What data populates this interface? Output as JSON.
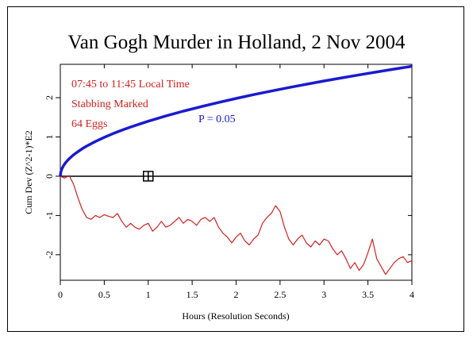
{
  "chart_data": {
    "type": "line",
    "title": "Van Gogh Murder in Holland, 2 Nov 2004",
    "xlabel": "Hours (Resolution Seconds)",
    "ylabel": "Cum Dev (Z^2-1)*E2",
    "xlim": [
      0,
      4
    ],
    "ylim": [
      -2.65,
      2.85
    ],
    "x_ticks": [
      0,
      0.5,
      1,
      1.5,
      2,
      2.5,
      3,
      3.5,
      4
    ],
    "x_tick_labels": [
      "0",
      "0.5",
      "1",
      "1.5",
      "2",
      "2.5",
      "3",
      "3.5",
      "4"
    ],
    "y_ticks": [
      -2,
      -1,
      0,
      1,
      2
    ],
    "y_tick_labels": [
      "-2",
      "-1",
      "0",
      "1",
      "2"
    ],
    "grid": false,
    "annotations": [
      {
        "text": "07:45 to 11:45 Local Time",
        "color": "#d42020"
      },
      {
        "text": "Stabbing Marked",
        "color": "#d42020"
      },
      {
        "text": "64 Eggs",
        "color": "#d42020"
      },
      {
        "text": "P = 0.05",
        "color": "#1a1ad0"
      }
    ],
    "event_marker": {
      "x": 1,
      "y": 0,
      "shape": "boxed-cross"
    },
    "baseline_y": 0,
    "series": [
      {
        "color": "#d42020",
        "x": [
          0,
          0.05,
          0.1,
          0.15,
          0.2,
          0.25,
          0.3,
          0.35,
          0.4,
          0.45,
          0.5,
          0.55,
          0.6,
          0.65,
          0.7,
          0.75,
          0.8,
          0.85,
          0.9,
          0.95,
          1.0,
          1.05,
          1.1,
          1.15,
          1.2,
          1.25,
          1.3,
          1.35,
          1.4,
          1.45,
          1.5,
          1.55,
          1.6,
          1.65,
          1.7,
          1.75,
          1.8,
          1.85,
          1.9,
          1.95,
          2.0,
          2.05,
          2.1,
          2.15,
          2.2,
          2.25,
          2.3,
          2.35,
          2.4,
          2.45,
          2.5,
          2.55,
          2.6,
          2.65,
          2.7,
          2.75,
          2.8,
          2.85,
          2.9,
          2.95,
          3.0,
          3.05,
          3.1,
          3.15,
          3.2,
          3.25,
          3.3,
          3.35,
          3.4,
          3.45,
          3.5,
          3.55,
          3.6,
          3.65,
          3.7,
          3.75,
          3.8,
          3.85,
          3.9,
          3.95,
          4.0
        ],
        "y": [
          0,
          -0.05,
          0.02,
          -0.2,
          -0.55,
          -0.85,
          -1.05,
          -1.1,
          -1.0,
          -1.05,
          -0.98,
          -1.02,
          -1.05,
          -0.95,
          -1.15,
          -1.3,
          -1.2,
          -1.3,
          -1.35,
          -1.25,
          -1.2,
          -1.4,
          -1.3,
          -1.15,
          -1.3,
          -1.25,
          -1.15,
          -1.05,
          -1.2,
          -1.1,
          -1.15,
          -1.25,
          -1.1,
          -1.05,
          -1.15,
          -1.05,
          -1.3,
          -1.45,
          -1.55,
          -1.7,
          -1.55,
          -1.45,
          -1.65,
          -1.75,
          -1.6,
          -1.5,
          -1.2,
          -1.05,
          -0.95,
          -0.75,
          -0.9,
          -1.3,
          -1.6,
          -1.75,
          -1.6,
          -1.5,
          -1.7,
          -1.8,
          -1.65,
          -1.75,
          -1.6,
          -1.65,
          -1.85,
          -2.0,
          -1.9,
          -2.1,
          -2.35,
          -2.2,
          -2.4,
          -2.25,
          -1.95,
          -1.6,
          -2.1,
          -2.3,
          -2.5,
          -2.35,
          -2.2,
          -2.1,
          -2.05,
          -2.2,
          -2.15
        ]
      },
      {
        "color": "#1a1ad0",
        "x": [
          0,
          0.005,
          0.01,
          0.02,
          0.04,
          0.06,
          0.08,
          0.1,
          0.15,
          0.2,
          0.25,
          0.3,
          0.4,
          0.5,
          0.6,
          0.7,
          0.8,
          0.9,
          1.0,
          1.2,
          1.4,
          1.6,
          1.8,
          2.0,
          2.2,
          2.4,
          2.6,
          2.8,
          3.0,
          3.2,
          3.4,
          3.6,
          3.8,
          4.0
        ],
        "y": [
          0,
          0.099,
          0.14,
          0.198,
          0.28,
          0.343,
          0.396,
          0.443,
          0.542,
          0.626,
          0.7,
          0.767,
          0.885,
          0.99,
          1.084,
          1.171,
          1.252,
          1.328,
          1.4,
          1.534,
          1.656,
          1.771,
          1.878,
          1.98,
          2.077,
          2.169,
          2.258,
          2.343,
          2.425,
          2.505,
          2.582,
          2.656,
          2.729,
          2.8
        ]
      }
    ]
  }
}
